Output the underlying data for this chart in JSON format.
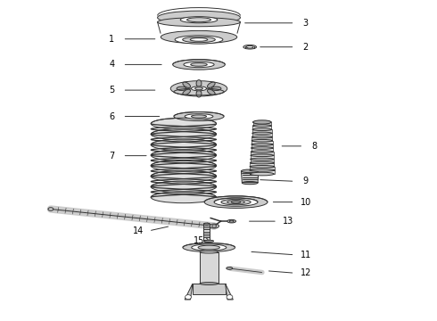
{
  "background_color": "#ffffff",
  "figsize": [
    4.9,
    3.6
  ],
  "dpi": 100,
  "ec": "#333333",
  "lw": 0.7,
  "parts_labels": [
    [
      1,
      0.255,
      0.88,
      0.36,
      0.88
    ],
    [
      2,
      0.7,
      0.855,
      0.59,
      0.855
    ],
    [
      3,
      0.7,
      0.93,
      0.555,
      0.93
    ],
    [
      4,
      0.255,
      0.8,
      0.375,
      0.8
    ],
    [
      5,
      0.255,
      0.72,
      0.36,
      0.72
    ],
    [
      6,
      0.255,
      0.638,
      0.37,
      0.638
    ],
    [
      7,
      0.255,
      0.515,
      0.34,
      0.515
    ],
    [
      8,
      0.72,
      0.545,
      0.64,
      0.545
    ],
    [
      9,
      0.7,
      0.435,
      0.59,
      0.44
    ],
    [
      10,
      0.7,
      0.37,
      0.62,
      0.37
    ],
    [
      11,
      0.7,
      0.205,
      0.57,
      0.215
    ],
    [
      12,
      0.7,
      0.148,
      0.61,
      0.155
    ],
    [
      13,
      0.66,
      0.31,
      0.565,
      0.31
    ],
    [
      14,
      0.315,
      0.28,
      0.39,
      0.295
    ],
    [
      15,
      0.455,
      0.248,
      0.468,
      0.262
    ]
  ]
}
